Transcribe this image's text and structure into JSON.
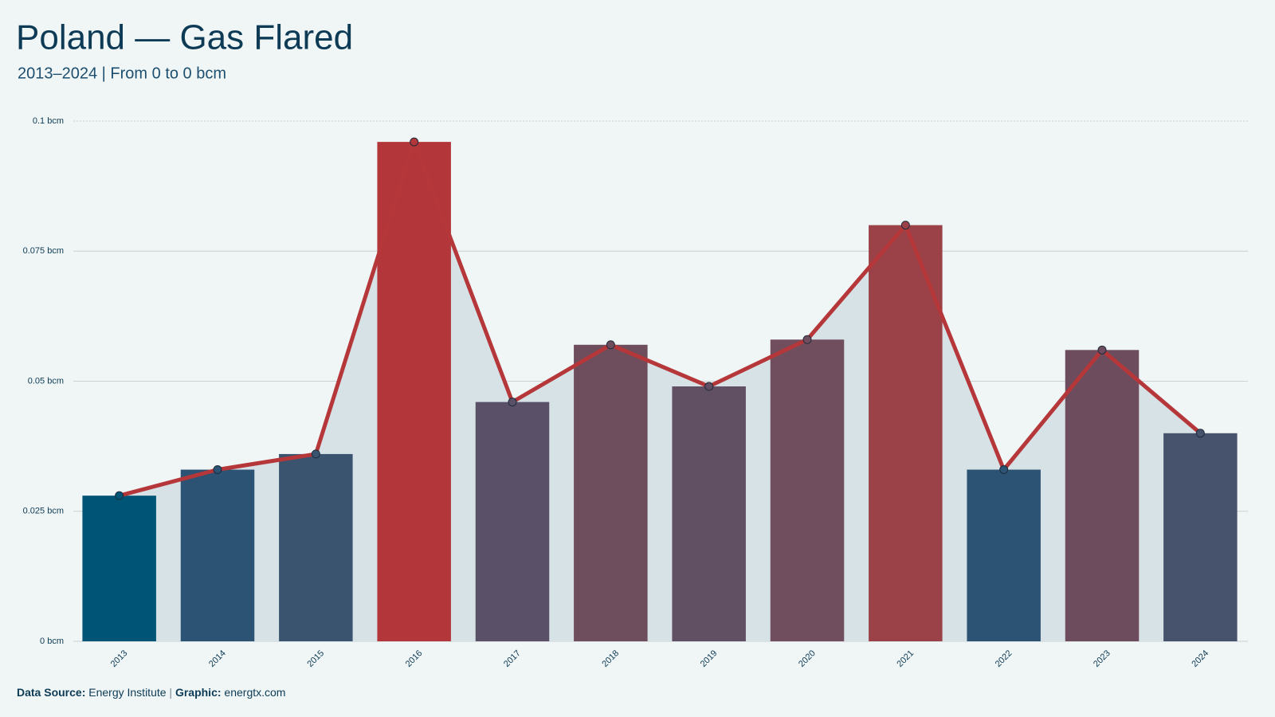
{
  "chart_data": {
    "type": "bar",
    "title": "Poland — Gas Flared",
    "subtitle": "2013–2024 | From 0 to 0 bcm",
    "categories": [
      "2013",
      "2014",
      "2015",
      "2016",
      "2017",
      "2018",
      "2019",
      "2020",
      "2021",
      "2022",
      "2023",
      "2024"
    ],
    "values": [
      0.028,
      0.033,
      0.036,
      0.096,
      0.046,
      0.057,
      0.049,
      0.058,
      0.08,
      0.033,
      0.056,
      0.04
    ],
    "colors": [
      "#005577",
      "#2c5274",
      "#3a5470",
      "#b3373a",
      "#5a5068",
      "#6e4d5c",
      "#614f64",
      "#714e5e",
      "#9a4247",
      "#2c5374",
      "#6d4d5d",
      "#47536c"
    ],
    "line_color": "#b5373a",
    "area_color": "#d6e2e6",
    "ylim": [
      0,
      0.1
    ],
    "yticks": [
      {
        "value": 0,
        "label": "0 bcm"
      },
      {
        "value": 0.025,
        "label": "0.025 bcm"
      },
      {
        "value": 0.05,
        "label": "0.05 bcm"
      },
      {
        "value": 0.075,
        "label": "0.075 bcm"
      },
      {
        "value": 0.1,
        "label": "0.1 bcm"
      }
    ],
    "grid": true,
    "footer": {
      "source_label": "Data Source:",
      "source": "Energy Institute",
      "separator": "|",
      "credit_label": "Graphic:",
      "credit": "energtx.com"
    }
  }
}
